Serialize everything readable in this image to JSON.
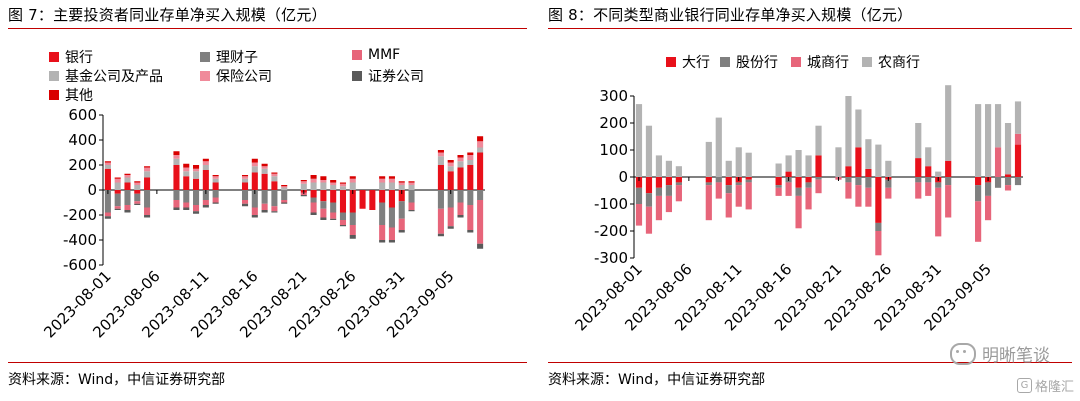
{
  "left": {
    "title": "图 7：主要投资者同业存单净买入规模（亿元）",
    "source": "资料来源：Wind，中信证券研究部"
  },
  "right": {
    "title": "图 8：不同类型商业银行同业存单净买入规模（亿元）",
    "source": "资料来源：Wind，中信证券研究部"
  },
  "watermark": {
    "text": "明晰笔谈",
    "brand": "格隆汇",
    "brand_icon": "G",
    "icon": "wechat-icon"
  },
  "chart_data": [
    {
      "type": "bar",
      "stacked": true,
      "title": "",
      "ylim": [
        -600,
        600
      ],
      "yticks": [
        -600,
        -400,
        -200,
        0,
        200,
        400,
        600
      ],
      "x_tick_labels": [
        "2023-08-01",
        "2023-08-06",
        "2023-08-11",
        "2023-08-16",
        "2023-08-21",
        "2023-08-26",
        "2023-08-31",
        "2023-09-05"
      ],
      "x": [
        "2023-08-01",
        "2023-08-02",
        "2023-08-03",
        "2023-08-04",
        "2023-08-05",
        "2023-08-06",
        "2023-08-07",
        "2023-08-08",
        "2023-08-09",
        "2023-08-10",
        "2023-08-11",
        "2023-08-12",
        "2023-08-13",
        "2023-08-14",
        "2023-08-15",
        "2023-08-16",
        "2023-08-17",
        "2023-08-18",
        "2023-08-19",
        "2023-08-20",
        "2023-08-21",
        "2023-08-22",
        "2023-08-23",
        "2023-08-24",
        "2023-08-25",
        "2023-08-26",
        "2023-08-27",
        "2023-08-28",
        "2023-08-29",
        "2023-08-30",
        "2023-08-31",
        "2023-09-01",
        "2023-09-02",
        "2023-09-03",
        "2023-09-04",
        "2023-09-05",
        "2023-09-06",
        "2023-09-07",
        "2023-09-08"
      ],
      "legend_position": "top-left",
      "series": [
        {
          "name": "银行",
          "color": "#e8101a",
          "values": [
            170,
            -30,
            60,
            -30,
            100,
            0,
            0,
            200,
            110,
            90,
            160,
            60,
            0,
            0,
            60,
            140,
            130,
            70,
            0,
            0,
            -20,
            -60,
            -90,
            -100,
            -180,
            -180,
            -150,
            -160,
            -100,
            -140,
            -90,
            0,
            0,
            0,
            200,
            150,
            180,
            200,
            300
          ]
        },
        {
          "name": "理财子",
          "color": "#7f7f7f",
          "values": [
            -180,
            -100,
            -120,
            -60,
            -140,
            0,
            0,
            -80,
            -100,
            -120,
            -80,
            -60,
            0,
            0,
            -80,
            -140,
            -110,
            -130,
            -80,
            0,
            0,
            -40,
            -60,
            -80,
            -60,
            -100,
            0,
            0,
            -180,
            -160,
            -140,
            -100,
            0,
            0,
            -150,
            -140,
            -100,
            -120,
            -80
          ]
        },
        {
          "name": "MMF",
          "color": "#e7657a",
          "values": [
            -30,
            -20,
            -40,
            -20,
            -60,
            0,
            0,
            -60,
            -40,
            -50,
            -40,
            -40,
            0,
            0,
            -30,
            -60,
            -50,
            -40,
            -20,
            0,
            -20,
            -80,
            -70,
            -50,
            -40,
            -80,
            0,
            0,
            -120,
            -100,
            -90,
            -60,
            0,
            0,
            -200,
            -150,
            -100,
            -200,
            -350
          ]
        },
        {
          "name": "基金公司及产品",
          "color": "#b3b3b3",
          "values": [
            30,
            60,
            40,
            40,
            50,
            0,
            0,
            50,
            40,
            60,
            40,
            30,
            0,
            0,
            30,
            50,
            40,
            40,
            20,
            0,
            50,
            60,
            60,
            40,
            30,
            60,
            0,
            0,
            60,
            60,
            40,
            40,
            0,
            0,
            70,
            40,
            50,
            40,
            40
          ]
        },
        {
          "name": "保险公司",
          "color": "#f08a9a",
          "values": [
            20,
            30,
            20,
            20,
            30,
            0,
            0,
            30,
            30,
            20,
            30,
            20,
            0,
            0,
            20,
            30,
            20,
            20,
            10,
            0,
            20,
            30,
            20,
            20,
            20,
            30,
            0,
            0,
            30,
            30,
            20,
            20,
            0,
            0,
            30,
            30,
            30,
            40,
            50
          ]
        },
        {
          "name": "证券公司",
          "color": "#5a5a5a",
          "values": [
            -20,
            -10,
            -20,
            -10,
            -20,
            0,
            0,
            -20,
            -20,
            -20,
            -20,
            -10,
            0,
            0,
            -20,
            -20,
            -20,
            -10,
            -10,
            0,
            -10,
            -20,
            -20,
            -10,
            -10,
            -30,
            0,
            0,
            -20,
            -20,
            -20,
            -10,
            0,
            0,
            -20,
            -20,
            -20,
            -20,
            -40
          ]
        },
        {
          "name": "其他",
          "color": "#d90000",
          "values": [
            10,
            10,
            10,
            10,
            10,
            0,
            0,
            30,
            30,
            30,
            20,
            10,
            0,
            0,
            10,
            30,
            20,
            10,
            10,
            0,
            10,
            30,
            30,
            20,
            10,
            20,
            0,
            0,
            20,
            20,
            10,
            10,
            0,
            0,
            20,
            20,
            20,
            20,
            40
          ]
        }
      ]
    },
    {
      "type": "bar",
      "stacked": true,
      "title": "",
      "ylim": [
        -300,
        300
      ],
      "yticks": [
        -300,
        -200,
        -100,
        0,
        100,
        200,
        300
      ],
      "x_tick_labels": [
        "2023-08-01",
        "2023-08-06",
        "2023-08-11",
        "2023-08-16",
        "2023-08-21",
        "2023-08-26",
        "2023-08-31",
        "2023-09-05"
      ],
      "x": [
        "2023-08-01",
        "2023-08-02",
        "2023-08-03",
        "2023-08-04",
        "2023-08-05",
        "2023-08-06",
        "2023-08-07",
        "2023-08-08",
        "2023-08-09",
        "2023-08-10",
        "2023-08-11",
        "2023-08-12",
        "2023-08-13",
        "2023-08-14",
        "2023-08-15",
        "2023-08-16",
        "2023-08-17",
        "2023-08-18",
        "2023-08-19",
        "2023-08-20",
        "2023-08-21",
        "2023-08-22",
        "2023-08-23",
        "2023-08-24",
        "2023-08-25",
        "2023-08-26",
        "2023-08-27",
        "2023-08-28",
        "2023-08-29",
        "2023-08-30",
        "2023-08-31",
        "2023-09-01",
        "2023-09-02",
        "2023-09-03",
        "2023-09-04",
        "2023-09-05",
        "2023-09-06",
        "2023-09-07",
        "2023-09-08"
      ],
      "legend_position": "top-left",
      "series": [
        {
          "name": "大行",
          "color": "#e8101a",
          "values": [
            -40,
            -60,
            -40,
            -30,
            -20,
            0,
            0,
            -20,
            0,
            -30,
            -20,
            -10,
            0,
            0,
            -30,
            20,
            -40,
            -20,
            80,
            0,
            0,
            40,
            110,
            30,
            -170,
            -10,
            0,
            0,
            70,
            40,
            -20,
            60,
            0,
            0,
            -30,
            -20,
            0,
            10,
            120
          ]
        },
        {
          "name": "股份行",
          "color": "#7f7f7f",
          "values": [
            -60,
            -50,
            -30,
            -40,
            -10,
            0,
            0,
            -10,
            -20,
            -30,
            -10,
            -10,
            0,
            0,
            -10,
            -20,
            -30,
            -20,
            -10,
            0,
            0,
            -20,
            -30,
            -40,
            -30,
            -30,
            0,
            0,
            -20,
            -20,
            -20,
            -30,
            0,
            0,
            -60,
            -50,
            -40,
            -30,
            -30
          ]
        },
        {
          "name": "城商行",
          "color": "#e7657a",
          "values": [
            -80,
            -100,
            -90,
            -60,
            -60,
            0,
            0,
            -130,
            -60,
            -90,
            -80,
            -100,
            0,
            0,
            -30,
            -50,
            -120,
            -80,
            -50,
            0,
            -10,
            -60,
            -80,
            -70,
            -90,
            -40,
            0,
            0,
            -60,
            -50,
            -180,
            -120,
            0,
            0,
            -150,
            -90,
            110,
            -20,
            40
          ]
        },
        {
          "name": "农商行",
          "color": "#b3b3b3",
          "values": [
            270,
            190,
            80,
            60,
            40,
            0,
            0,
            130,
            220,
            60,
            110,
            90,
            0,
            0,
            50,
            60,
            100,
            80,
            110,
            0,
            110,
            260,
            140,
            110,
            120,
            60,
            0,
            0,
            130,
            70,
            20,
            280,
            0,
            0,
            270,
            270,
            160,
            190,
            120
          ]
        }
      ]
    }
  ]
}
